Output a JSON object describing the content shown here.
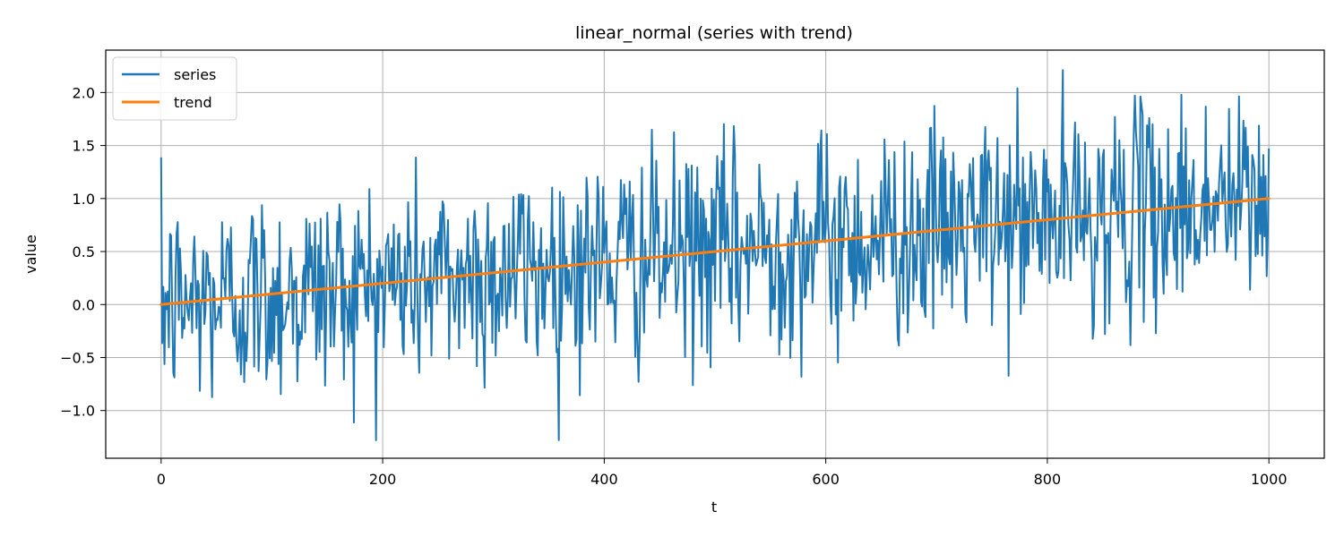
{
  "chart_data": {
    "type": "line",
    "title": "linear_normal (series with trend)",
    "xlabel": "t",
    "ylabel": "value",
    "xlim": [
      -50,
      1050
    ],
    "ylim": [
      -1.45,
      2.4
    ],
    "grid": true,
    "legend_position": "top-left",
    "x_ticks": [
      0,
      200,
      400,
      600,
      800,
      1000
    ],
    "x_tick_labels": [
      "0",
      "200",
      "400",
      "600",
      "800",
      "1000"
    ],
    "y_ticks": [
      -1.0,
      -0.5,
      0.0,
      0.5,
      1.0,
      1.5,
      2.0
    ],
    "y_tick_labels": [
      "−1.0",
      "−0.5",
      "0.0",
      "0.5",
      "1.0",
      "1.5",
      "2.0"
    ],
    "series": [
      {
        "name": "series",
        "color": "#1f77b4",
        "kind": "noisy",
        "n_points": 1001,
        "trend_start": 0.0,
        "trend_end": 1.0,
        "noise_sd": 0.5,
        "approx_min": -1.28,
        "approx_max": 2.23
      },
      {
        "name": "trend",
        "color": "#ff7f0e",
        "kind": "linear",
        "x": [
          0,
          1000
        ],
        "y": [
          0.0,
          1.0
        ]
      }
    ]
  }
}
